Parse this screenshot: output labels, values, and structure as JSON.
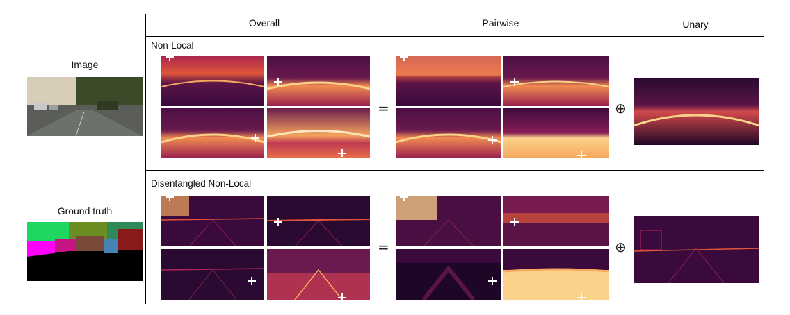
{
  "columns": {
    "overall": "Overall",
    "pairwise": "Pairwise",
    "unary": "Unary"
  },
  "left": {
    "image_label": "Image",
    "gt_label": "Ground truth"
  },
  "rows": [
    {
      "title": "Non-Local"
    },
    {
      "title": "Disentangled Non-Local"
    }
  ],
  "operators": {
    "equals": "=",
    "plus": "⊕"
  },
  "colors": {
    "inferno_dark": "#3a0a3d",
    "inferno_mid": "#b0265a",
    "inferno_bright": "#f7a25c",
    "inferno_white": "#fde6c0",
    "gt_road": "#000000",
    "gt_vegetation": "#6b8e23",
    "gt_building": "#ff00ff",
    "gt_sky": "#2e8b57",
    "gt_wall": "#8b1a1a"
  }
}
